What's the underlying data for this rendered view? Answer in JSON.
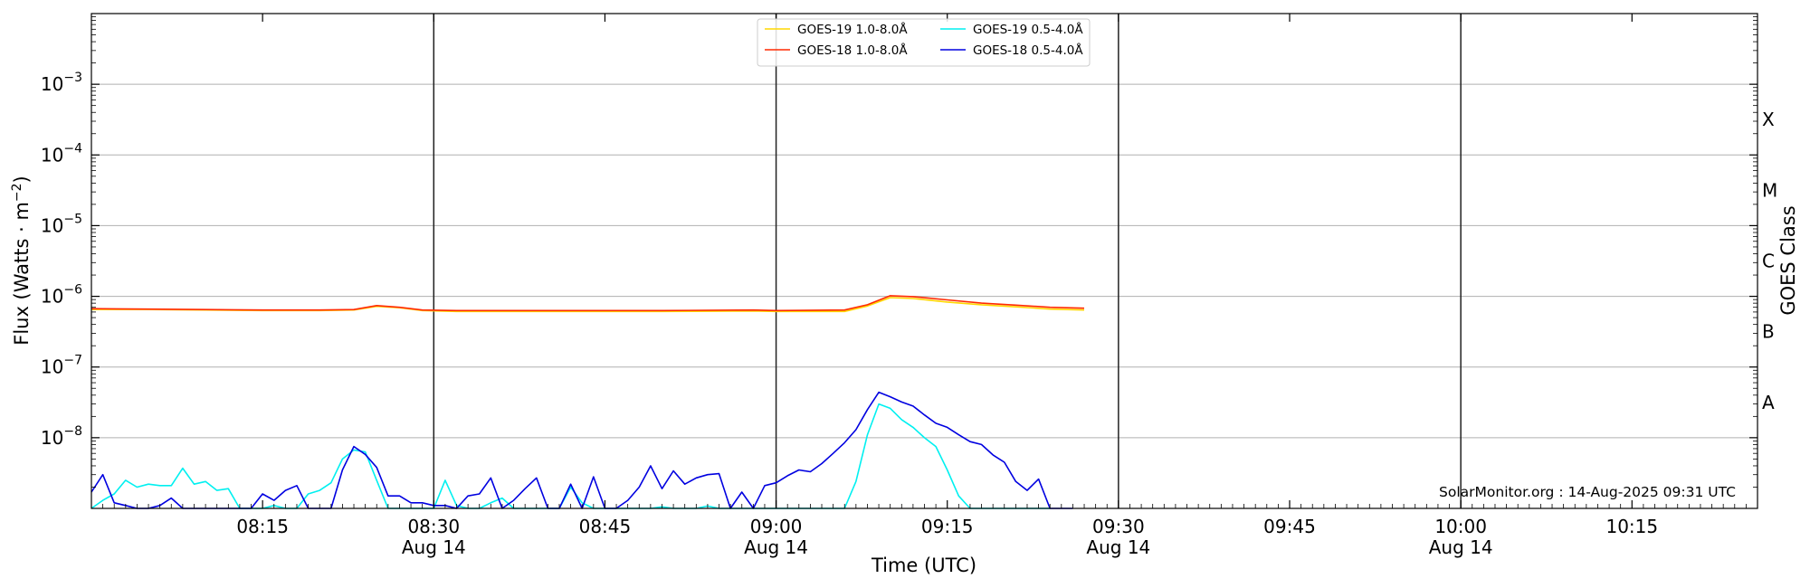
{
  "chart_data": {
    "type": "line",
    "xlabel": "Time (UTC)",
    "ylabel_main": "Flux (Watts · m",
    "ylabel_sup": "−2",
    "ylabel_close": ")",
    "right_label": "GOES Class",
    "credit": "SolarMonitor.org : 14-Aug-2025 09:31 UTC",
    "y_scale": "log",
    "ylim": [
      1e-09,
      0.01
    ],
    "xlim": [
      "08:00",
      "10:26"
    ],
    "y_ticks": [
      {
        "value": 1e-08,
        "base": "10",
        "exp": "−8"
      },
      {
        "value": 1e-07,
        "base": "10",
        "exp": "−7"
      },
      {
        "value": 1e-06,
        "base": "10",
        "exp": "−6"
      },
      {
        "value": 1e-05,
        "base": "10",
        "exp": "−5"
      },
      {
        "value": 0.0001,
        "base": "10",
        "exp": "−4"
      },
      {
        "value": 0.001,
        "base": "10",
        "exp": "−3"
      }
    ],
    "x_ticks": [
      {
        "time": "08:15",
        "label": "08:15",
        "date": ""
      },
      {
        "time": "08:30",
        "label": "08:30",
        "date": "Aug 14"
      },
      {
        "time": "08:45",
        "label": "08:45",
        "date": ""
      },
      {
        "time": "09:00",
        "label": "09:00",
        "date": "Aug 14"
      },
      {
        "time": "09:15",
        "label": "09:15",
        "date": ""
      },
      {
        "time": "09:30",
        "label": "09:30",
        "date": "Aug 14"
      },
      {
        "time": "09:45",
        "label": "09:45",
        "date": ""
      },
      {
        "time": "10:00",
        "label": "10:00",
        "date": "Aug 14"
      },
      {
        "time": "10:15",
        "label": "10:15",
        "date": ""
      }
    ],
    "vlines": [
      "08:30",
      "09:00",
      "09:30",
      "10:00"
    ],
    "goes_classes": [
      {
        "label": "A",
        "value": 3.16e-08
      },
      {
        "label": "B",
        "value": 3.16e-07
      },
      {
        "label": "C",
        "value": 3.16e-06
      },
      {
        "label": "M",
        "value": 3.16e-05
      },
      {
        "label": "X",
        "value": 0.000316
      }
    ],
    "grid": true,
    "legend_position": "top-center",
    "series": [
      {
        "name": "GOES-19 1.0-8.0Å",
        "color": "#ffd700",
        "points": [
          [
            "08:00",
            6.5e-07
          ],
          [
            "08:05",
            6.5e-07
          ],
          [
            "08:10",
            6.4e-07
          ],
          [
            "08:15",
            6.3e-07
          ],
          [
            "08:20",
            6.3e-07
          ],
          [
            "08:23",
            6.4e-07
          ],
          [
            "08:25",
            7.2e-07
          ],
          [
            "08:27",
            6.9e-07
          ],
          [
            "08:29",
            6.3e-07
          ],
          [
            "08:32",
            6.1e-07
          ],
          [
            "08:40",
            6.1e-07
          ],
          [
            "08:50",
            6.1e-07
          ],
          [
            "08:58",
            6.2e-07
          ],
          [
            "09:00",
            6.1e-07
          ],
          [
            "09:06",
            6.1e-07
          ],
          [
            "09:08",
            7.3e-07
          ],
          [
            "09:10",
            9.6e-07
          ],
          [
            "09:12",
            9.3e-07
          ],
          [
            "09:15",
            8.3e-07
          ],
          [
            "09:18",
            7.6e-07
          ],
          [
            "09:21",
            7.1e-07
          ],
          [
            "09:24",
            6.6e-07
          ],
          [
            "09:27",
            6.4e-07
          ]
        ]
      },
      {
        "name": "GOES-18 1.0-8.0Å",
        "color": "#ff2a00",
        "points": [
          [
            "08:00",
            6.7e-07
          ],
          [
            "08:05",
            6.6e-07
          ],
          [
            "08:10",
            6.5e-07
          ],
          [
            "08:15",
            6.4e-07
          ],
          [
            "08:20",
            6.4e-07
          ],
          [
            "08:23",
            6.5e-07
          ],
          [
            "08:25",
            7.4e-07
          ],
          [
            "08:27",
            7e-07
          ],
          [
            "08:29",
            6.4e-07
          ],
          [
            "08:32",
            6.3e-07
          ],
          [
            "08:40",
            6.3e-07
          ],
          [
            "08:50",
            6.3e-07
          ],
          [
            "08:58",
            6.4e-07
          ],
          [
            "09:00",
            6.3e-07
          ],
          [
            "09:06",
            6.4e-07
          ],
          [
            "09:08",
            7.6e-07
          ],
          [
            "09:10",
            1.02e-06
          ],
          [
            "09:12",
            9.9e-07
          ],
          [
            "09:15",
            8.9e-07
          ],
          [
            "09:18",
            8e-07
          ],
          [
            "09:21",
            7.5e-07
          ],
          [
            "09:24",
            7e-07
          ],
          [
            "09:27",
            6.8e-07
          ]
        ]
      },
      {
        "name": "GOES-19 0.5-4.0Å",
        "color": "#00f0f0",
        "points": [
          [
            "08:00",
            1e-09
          ],
          [
            "08:01",
            1.3e-09
          ],
          [
            "08:02",
            1.6e-09
          ],
          [
            "08:03",
            2.5e-09
          ],
          [
            "08:04",
            2e-09
          ],
          [
            "08:05",
            2.2e-09
          ],
          [
            "08:06",
            2.1e-09
          ],
          [
            "08:07",
            2.1e-09
          ],
          [
            "08:08",
            3.7e-09
          ],
          [
            "08:09",
            2.2e-09
          ],
          [
            "08:10",
            2.4e-09
          ],
          [
            "08:11",
            1.8e-09
          ],
          [
            "08:12",
            1.9e-09
          ],
          [
            "08:13",
            1e-09
          ],
          [
            "08:14",
            1e-09
          ],
          [
            "08:15",
            1e-09
          ],
          [
            "08:16",
            1.1e-09
          ],
          [
            "08:17",
            1e-09
          ],
          [
            "08:18",
            1e-09
          ],
          [
            "08:19",
            1.6e-09
          ],
          [
            "08:20",
            1.8e-09
          ],
          [
            "08:21",
            2.3e-09
          ],
          [
            "08:22",
            5e-09
          ],
          [
            "08:23",
            6.7e-09
          ],
          [
            "08:24",
            6.3e-09
          ],
          [
            "08:25",
            2.5e-09
          ],
          [
            "08:26",
            1e-09
          ],
          [
            "08:27",
            1e-09
          ],
          [
            "08:28",
            1e-09
          ],
          [
            "08:29",
            1e-09
          ],
          [
            "08:30",
            1e-09
          ],
          [
            "08:31",
            2.5e-09
          ],
          [
            "08:32",
            1.1e-09
          ],
          [
            "08:33",
            1e-09
          ],
          [
            "08:34",
            1e-09
          ],
          [
            "08:35",
            1.2e-09
          ],
          [
            "08:36",
            1.4e-09
          ],
          [
            "08:37",
            1e-09
          ],
          [
            "08:38",
            1e-09
          ],
          [
            "08:39",
            1e-09
          ],
          [
            "08:40",
            1e-09
          ],
          [
            "08:41",
            1e-09
          ],
          [
            "08:42",
            2e-09
          ],
          [
            "08:43",
            1.2e-09
          ],
          [
            "08:44",
            1e-09
          ],
          [
            "08:45",
            1e-09
          ],
          [
            "08:46",
            1e-09
          ],
          [
            "08:47",
            1e-09
          ],
          [
            "08:48",
            1e-09
          ],
          [
            "08:49",
            1e-09
          ],
          [
            "08:50",
            1.05e-09
          ],
          [
            "08:51",
            1e-09
          ],
          [
            "08:52",
            1e-09
          ],
          [
            "08:53",
            1e-09
          ],
          [
            "08:54",
            1.08e-09
          ],
          [
            "08:55",
            1e-09
          ],
          [
            "08:56",
            1e-09
          ],
          [
            "08:57",
            1e-09
          ],
          [
            "08:58",
            1e-09
          ],
          [
            "08:59",
            1e-09
          ],
          [
            "09:00",
            1e-09
          ],
          [
            "09:01",
            1e-09
          ],
          [
            "09:02",
            1e-09
          ],
          [
            "09:03",
            1e-09
          ],
          [
            "09:04",
            1e-09
          ],
          [
            "09:05",
            1e-09
          ],
          [
            "09:06",
            1e-09
          ],
          [
            "09:07",
            2.4e-09
          ],
          [
            "09:08",
            1.1e-08
          ],
          [
            "09:09",
            3e-08
          ],
          [
            "09:10",
            2.6e-08
          ],
          [
            "09:11",
            1.8e-08
          ],
          [
            "09:12",
            1.4e-08
          ],
          [
            "09:13",
            1e-08
          ],
          [
            "09:14",
            7.5e-09
          ],
          [
            "09:15",
            3.5e-09
          ],
          [
            "09:16",
            1.5e-09
          ],
          [
            "09:17",
            1e-09
          ],
          [
            "09:18",
            1e-09
          ],
          [
            "09:19",
            1e-09
          ],
          [
            "09:20",
            1e-09
          ],
          [
            "09:21",
            1e-09
          ],
          [
            "09:22",
            1e-09
          ],
          [
            "09:23",
            1e-09
          ],
          [
            "09:24",
            1e-09
          ]
        ]
      },
      {
        "name": "GOES-18 0.5-4.0Å",
        "color": "#0000e0",
        "points": [
          [
            "08:00",
            1.7e-09
          ],
          [
            "08:01",
            3e-09
          ],
          [
            "08:02",
            1.2e-09
          ],
          [
            "08:03",
            1.1e-09
          ],
          [
            "08:04",
            1e-09
          ],
          [
            "08:05",
            1e-09
          ],
          [
            "08:06",
            1.1e-09
          ],
          [
            "08:07",
            1.4e-09
          ],
          [
            "08:08",
            1e-09
          ],
          [
            "08:09",
            1e-09
          ],
          [
            "08:10",
            1e-09
          ],
          [
            "08:11",
            1e-09
          ],
          [
            "08:12",
            1e-09
          ],
          [
            "08:13",
            1e-09
          ],
          [
            "08:14",
            1e-09
          ],
          [
            "08:15",
            1.6e-09
          ],
          [
            "08:16",
            1.3e-09
          ],
          [
            "08:17",
            1.8e-09
          ],
          [
            "08:18",
            2.1e-09
          ],
          [
            "08:19",
            1e-09
          ],
          [
            "08:20",
            1e-09
          ],
          [
            "08:21",
            1e-09
          ],
          [
            "08:22",
            3.5e-09
          ],
          [
            "08:23",
            7.5e-09
          ],
          [
            "08:24",
            5.8e-09
          ],
          [
            "08:25",
            3.8e-09
          ],
          [
            "08:26",
            1.5e-09
          ],
          [
            "08:27",
            1.5e-09
          ],
          [
            "08:28",
            1.2e-09
          ],
          [
            "08:29",
            1.2e-09
          ],
          [
            "08:30",
            1.1e-09
          ],
          [
            "08:31",
            1.1e-09
          ],
          [
            "08:32",
            1e-09
          ],
          [
            "08:33",
            1.5e-09
          ],
          [
            "08:34",
            1.6e-09
          ],
          [
            "08:35",
            2.7e-09
          ],
          [
            "08:36",
            1e-09
          ],
          [
            "08:37",
            1.3e-09
          ],
          [
            "08:38",
            1.9e-09
          ],
          [
            "08:39",
            2.7e-09
          ],
          [
            "08:40",
            1e-09
          ],
          [
            "08:41",
            1e-09
          ],
          [
            "08:42",
            2.2e-09
          ],
          [
            "08:43",
            1e-09
          ],
          [
            "08:44",
            2.8e-09
          ],
          [
            "08:45",
            1e-09
          ],
          [
            "08:46",
            1e-09
          ],
          [
            "08:47",
            1.3e-09
          ],
          [
            "08:48",
            2e-09
          ],
          [
            "08:49",
            4e-09
          ],
          [
            "08:50",
            1.9e-09
          ],
          [
            "08:51",
            3.4e-09
          ],
          [
            "08:52",
            2.2e-09
          ],
          [
            "08:53",
            2.7e-09
          ],
          [
            "08:54",
            3e-09
          ],
          [
            "08:55",
            3.1e-09
          ],
          [
            "08:56",
            1e-09
          ],
          [
            "08:57",
            1.7e-09
          ],
          [
            "08:58",
            1e-09
          ],
          [
            "08:59",
            2.1e-09
          ],
          [
            "09:00",
            2.3e-09
          ],
          [
            "09:01",
            2.9e-09
          ],
          [
            "09:02",
            3.5e-09
          ],
          [
            "09:03",
            3.3e-09
          ],
          [
            "09:04",
            4.3e-09
          ],
          [
            "09:05",
            6e-09
          ],
          [
            "09:06",
            8.5e-09
          ],
          [
            "09:07",
            1.3e-08
          ],
          [
            "09:08",
            2.5e-08
          ],
          [
            "09:09",
            4.4e-08
          ],
          [
            "09:10",
            3.8e-08
          ],
          [
            "09:11",
            3.2e-08
          ],
          [
            "09:12",
            2.8e-08
          ],
          [
            "09:13",
            2.1e-08
          ],
          [
            "09:14",
            1.6e-08
          ],
          [
            "09:15",
            1.4e-08
          ],
          [
            "09:16",
            1.1e-08
          ],
          [
            "09:17",
            8.8e-09
          ],
          [
            "09:18",
            8e-09
          ],
          [
            "09:19",
            5.7e-09
          ],
          [
            "09:20",
            4.5e-09
          ],
          [
            "09:21",
            2.4e-09
          ],
          [
            "09:22",
            1.8e-09
          ],
          [
            "09:23",
            2.6e-09
          ],
          [
            "09:24",
            1e-09
          ],
          [
            "09:25",
            1e-09
          ],
          [
            "09:26",
            1e-09
          ]
        ]
      }
    ]
  }
}
